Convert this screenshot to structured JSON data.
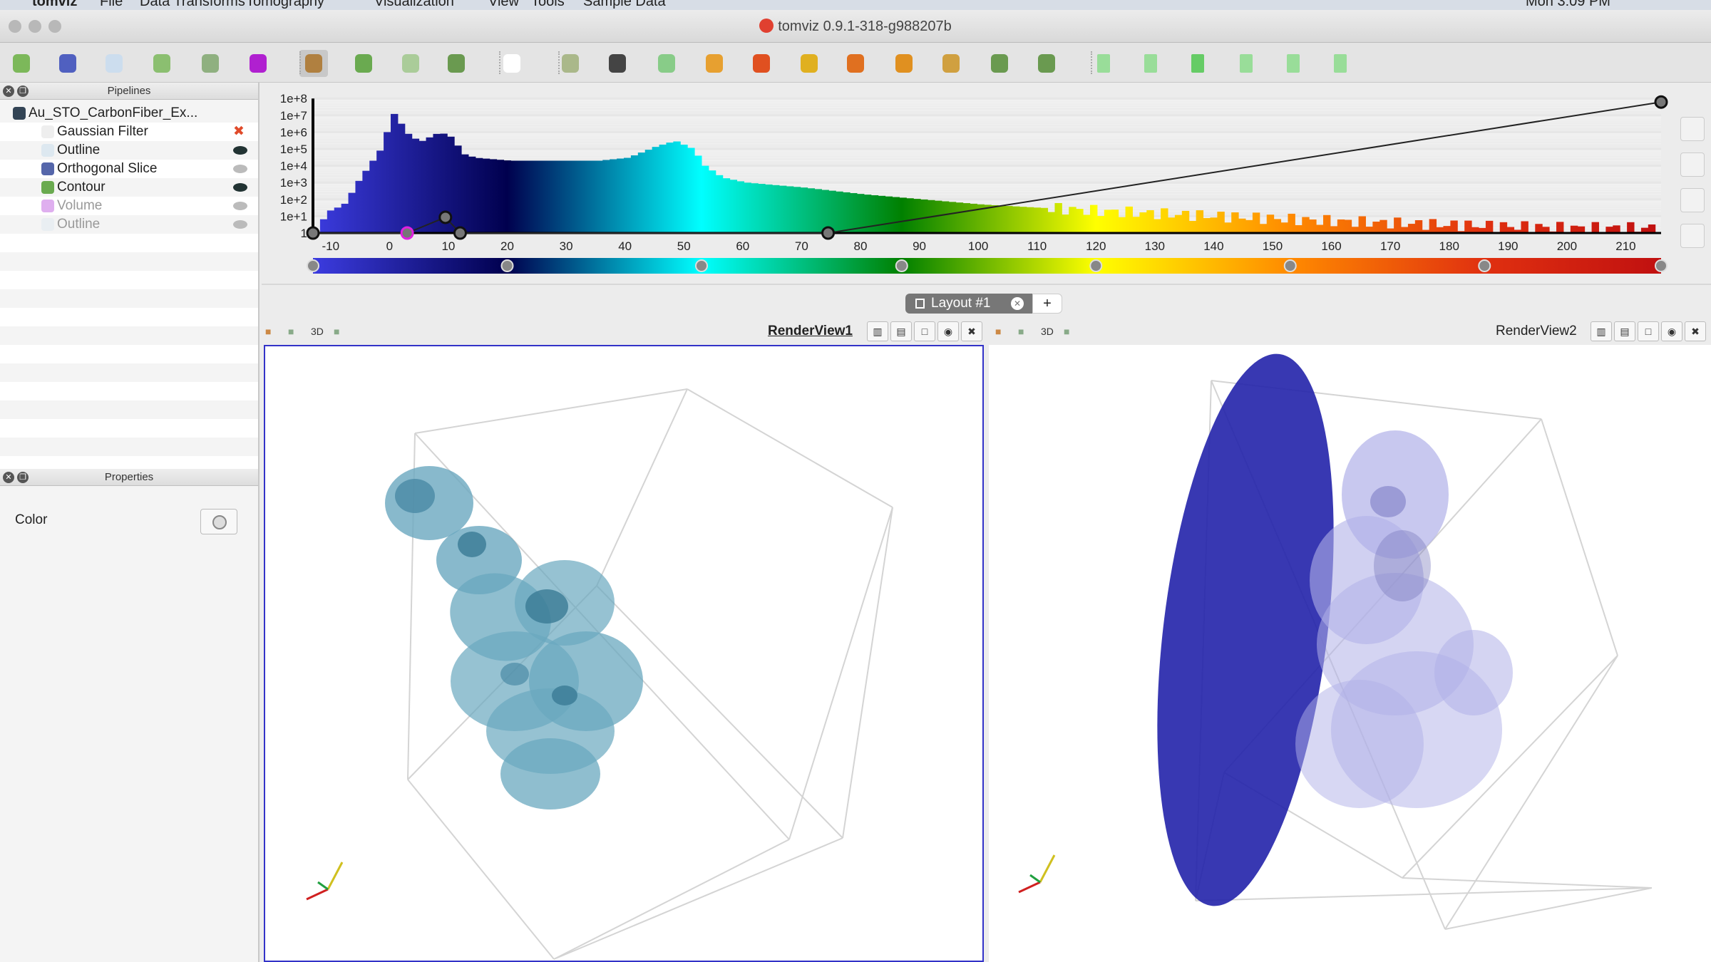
{
  "menubar": {
    "items": [
      "tomviz",
      "File",
      "Data Transforms",
      "Tomography",
      "Visualization",
      "View",
      "Tools",
      "Sample Data"
    ],
    "clock": "Mon 3:09 PM"
  },
  "window": {
    "title": "tomviz 0.9.1-318-g988207b"
  },
  "toolbar": {
    "icons": [
      "contour-icon",
      "orthogonal-slice-icon",
      "outline-icon",
      "clip-icon",
      "threshold-icon",
      "volume-icon",
      "interaction-mode-icon",
      "rotate-icon",
      "rotate-disabled-icon",
      "rotate-cursor-icon",
      "hand-pointer-icon",
      "reset-camera-icon",
      "data-reset-icon",
      "zoom-to-box-icon",
      "view-plus-x-icon",
      "view-minus-x-icon",
      "view-plus-y-icon",
      "view-minus-y-icon",
      "view-plus-z-icon",
      "view-minus-z-icon",
      "rotate-plus-90-icon",
      "rotate-minus-90-icon",
      "first-frame-icon",
      "previous-frame-icon",
      "play-icon",
      "next-frame-icon",
      "last-frame-icon",
      "loop-icon"
    ]
  },
  "pipelines": {
    "title": "Pipelines",
    "items": [
      {
        "label": "Au_STO_CarbonFiber_Ex...",
        "icon": "dataset-icon",
        "level": 0,
        "status": "none"
      },
      {
        "label": "Gaussian Filter",
        "icon": "filter-braces-icon",
        "level": 1,
        "status": "delete"
      },
      {
        "label": "Outline",
        "icon": "outline-icon",
        "level": 1,
        "status": "visible"
      },
      {
        "label": "Orthogonal Slice",
        "icon": "orthogonal-slice-icon",
        "level": 1,
        "status": "hidden"
      },
      {
        "label": "Contour",
        "icon": "contour-icon",
        "level": 1,
        "status": "visible"
      },
      {
        "label": "Volume",
        "icon": "volume-icon",
        "level": 1,
        "status": "hidden",
        "dim": true
      },
      {
        "label": "Outline",
        "icon": "outline-icon",
        "level": 1,
        "status": "hidden",
        "dim": true
      }
    ]
  },
  "properties": {
    "title": "Properties",
    "color_label": "Color"
  },
  "chart_data": {
    "type": "bar",
    "xlim": [
      -13,
      216
    ],
    "ylim": [
      1,
      100000000
    ],
    "yscale": "log",
    "x_ticks": [
      -10,
      0,
      10,
      20,
      30,
      40,
      50,
      60,
      70,
      80,
      90,
      100,
      110,
      120,
      130,
      140,
      150,
      160,
      170,
      180,
      190,
      200,
      210
    ],
    "y_ticks": [
      "1",
      "1e+1",
      "1e+2",
      "1e+3",
      "1e+4",
      "1e+5",
      "1e+6",
      "1e+7",
      "1e+8"
    ],
    "histogram": {
      "x": [
        -13,
        -12,
        -11,
        -10,
        -8,
        -6,
        -4,
        -2,
        -1,
        0,
        1,
        3,
        5,
        8,
        10,
        12,
        14,
        20,
        35,
        40,
        45,
        48,
        51,
        53,
        56,
        60,
        70,
        80,
        90,
        100,
        120,
        140,
        160,
        180,
        200,
        214
      ],
      "counts": [
        1,
        5,
        20,
        25,
        60,
        1000,
        10000,
        100000,
        1000000,
        15000000,
        5000000,
        500000,
        300000,
        1000000,
        500000,
        50000,
        30000,
        20000,
        20000,
        30000,
        150000,
        300000,
        100000,
        10000,
        2000,
        1000,
        500,
        200,
        100,
        50,
        20,
        10,
        5,
        3,
        2,
        2
      ]
    },
    "opacity_function": {
      "x": [
        -13,
        3,
        9.5,
        12,
        74.5,
        216
      ],
      "opacity": [
        0,
        0,
        0.12,
        0,
        0,
        1
      ]
    },
    "colormap": {
      "x": [
        -13,
        20,
        53,
        87,
        120,
        153,
        186,
        216
      ],
      "colors": [
        "#3c3ce0",
        "#00004e",
        "#00ffff",
        "#008000",
        "#ffff00",
        "#ff8a00",
        "#e03010",
        "#c01010"
      ]
    },
    "grid": true
  },
  "layout": {
    "tab_label": "Layout #1",
    "add_label": "+"
  },
  "views": [
    {
      "name": "RenderView1",
      "active": true,
      "mode": "3D"
    },
    {
      "name": "RenderView2",
      "active": false,
      "mode": "3D"
    }
  ]
}
